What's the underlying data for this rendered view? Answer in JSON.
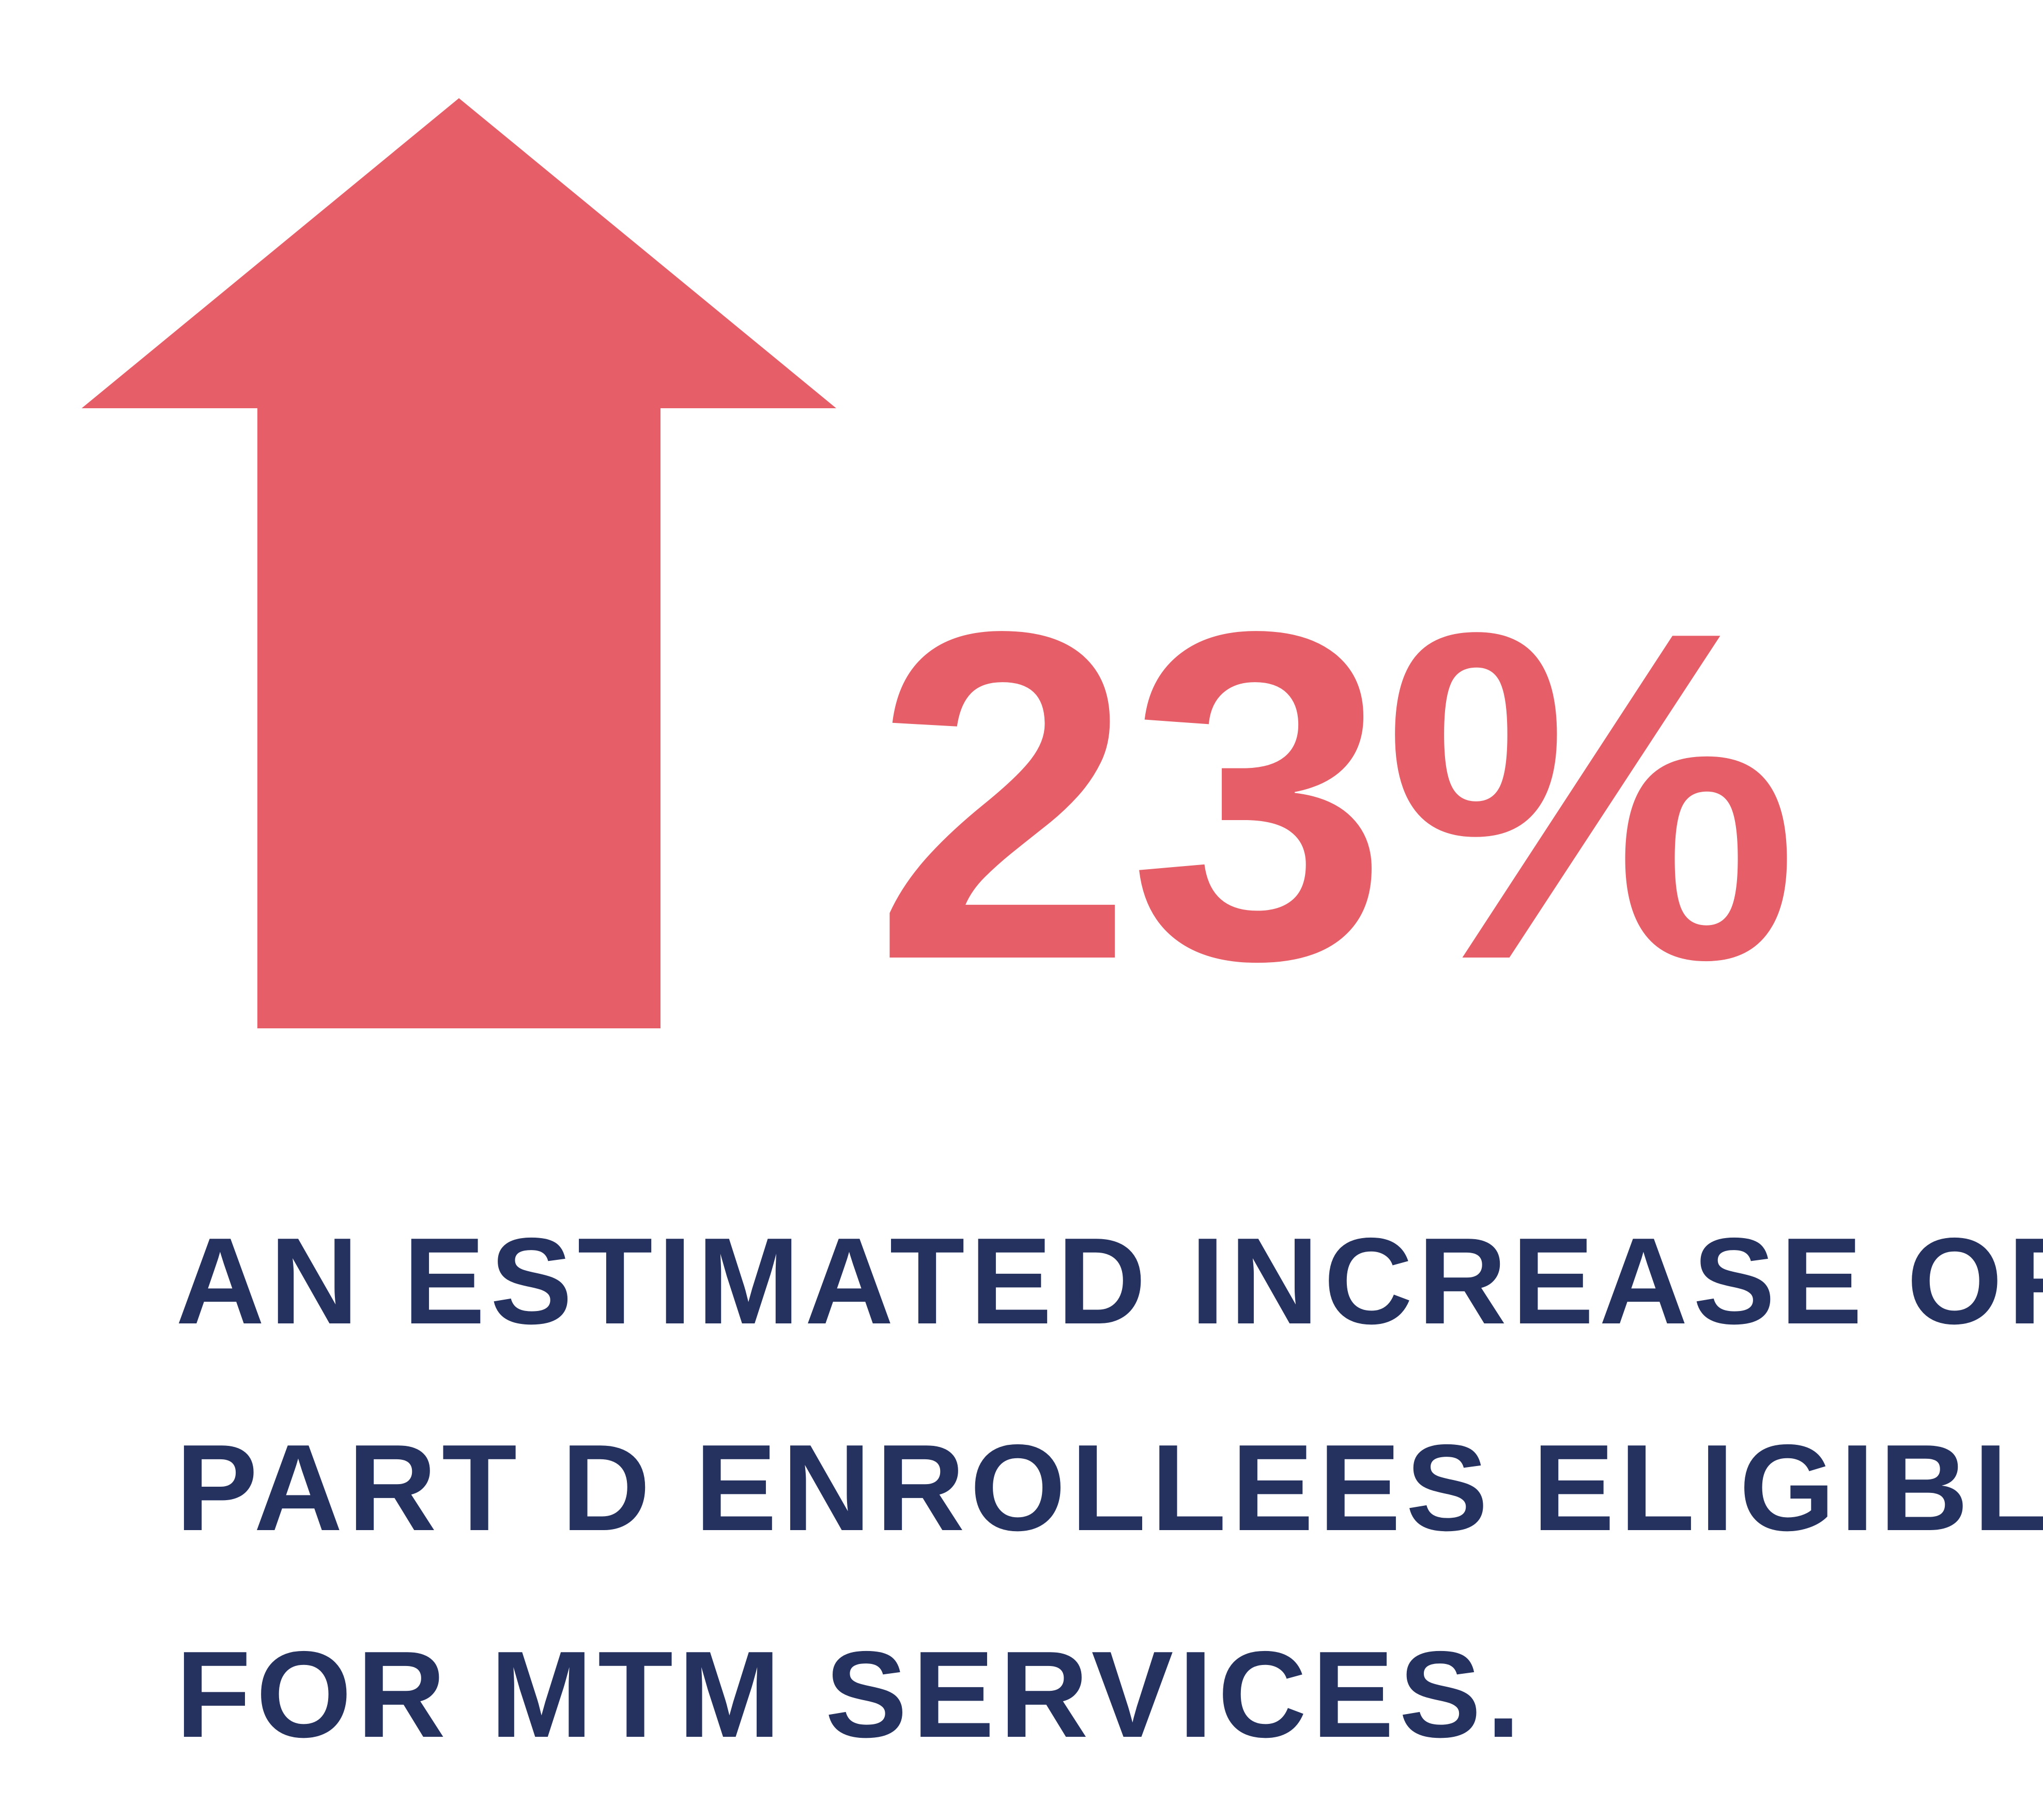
{
  "colors": {
    "accent": "#E65E67",
    "text": "#253260",
    "background": "#FFFFFF"
  },
  "icon": "up-arrow-icon",
  "stat": {
    "value": "23%"
  },
  "caption": {
    "lines": [
      "AN ESTIMATED INCREASE OF",
      "PART D ENROLLEES ELIGIBLE",
      "FOR MTM SERVICES."
    ]
  }
}
